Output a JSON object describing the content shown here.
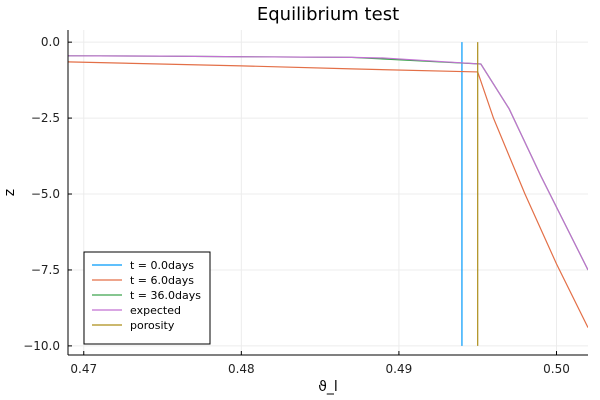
{
  "chart_data": {
    "type": "line",
    "title": "Equilibrium test",
    "xlabel": "ϑ_l",
    "ylabel": "z",
    "xlim": [
      0.469,
      0.502
    ],
    "ylim": [
      -10.3,
      0.4
    ],
    "xticks": [
      0.47,
      0.48,
      0.49,
      0.5
    ],
    "xtick_labels": [
      "0.47",
      "0.48",
      "0.49",
      "0.50"
    ],
    "yticks": [
      0.0,
      -2.5,
      -5.0,
      -7.5,
      -10.0
    ],
    "ytick_labels": [
      "0.0",
      "−2.5",
      "−5.0",
      "−7.5",
      "−10.0"
    ],
    "grid": true,
    "legend_position": "bottom-left",
    "series": [
      {
        "name": "t = 0.0days",
        "color": "#009AFA",
        "x": [
          0.494,
          0.494
        ],
        "y": [
          0.0,
          -10.0
        ]
      },
      {
        "name": "t = 6.0days",
        "color": "#E36F47",
        "x": [
          0.469,
          0.48,
          0.487,
          0.495,
          0.496,
          0.498,
          0.5,
          0.502
        ],
        "y": [
          -0.65,
          -0.78,
          -0.88,
          -0.98,
          -2.5,
          -5.0,
          -7.3,
          -9.4
        ]
      },
      {
        "name": "t = 36.0days",
        "color": "#3EA44E",
        "x": [
          0.469,
          0.475,
          0.48,
          0.487,
          0.4952,
          0.497,
          0.499,
          0.502
        ],
        "y": [
          -0.45,
          -0.46,
          -0.48,
          -0.5,
          -0.72,
          -2.2,
          -4.4,
          -7.5
        ]
      },
      {
        "name": "expected",
        "color": "#C271D2",
        "x": [
          0.469,
          0.475,
          0.48,
          0.487,
          0.489,
          0.4952,
          0.497,
          0.499,
          0.502
        ],
        "y": [
          -0.45,
          -0.46,
          -0.48,
          -0.5,
          -0.52,
          -0.72,
          -2.2,
          -4.4,
          -7.5
        ]
      },
      {
        "name": "porosity",
        "color": "#AC8D18",
        "x": [
          0.495,
          0.495
        ],
        "y": [
          0.0,
          -10.0
        ]
      }
    ]
  }
}
